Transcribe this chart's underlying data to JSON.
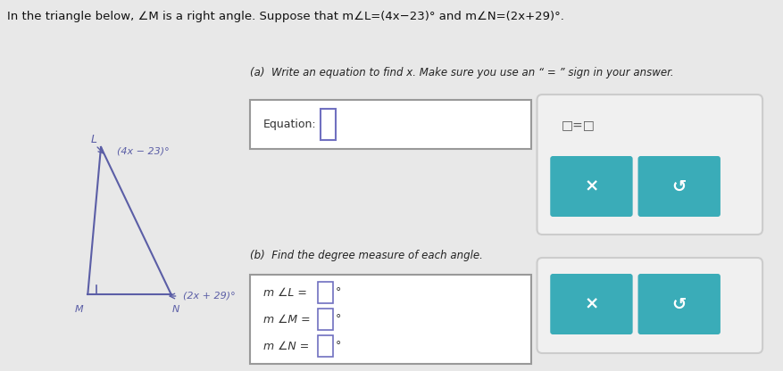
{
  "bg_color": "#e8e8e8",
  "title_text": "In the triangle below, ∠M is a right angle. Suppose that m∠L=(4x−23)° and m∠N=(2x+29)°.",
  "part_a_label": "(a)  Write an equation to find x. Make sure you use an “ = ” sign in your answer.",
  "equation_label": "Equation:",
  "part_b_label": "(b)  Find the degree measure of each angle.",
  "triangle_color": "#5b5ea6",
  "vertex_L_label": "L",
  "vertex_M_label": "M",
  "vertex_N_label": "N",
  "angle_L_expr": "(4x − 23)°",
  "angle_N_expr": "(2x + 29)°",
  "btn_color": "#3aacb8",
  "white": "#ffffff",
  "dark_border": "#aaaaaa",
  "purple_border": "#7070c0"
}
